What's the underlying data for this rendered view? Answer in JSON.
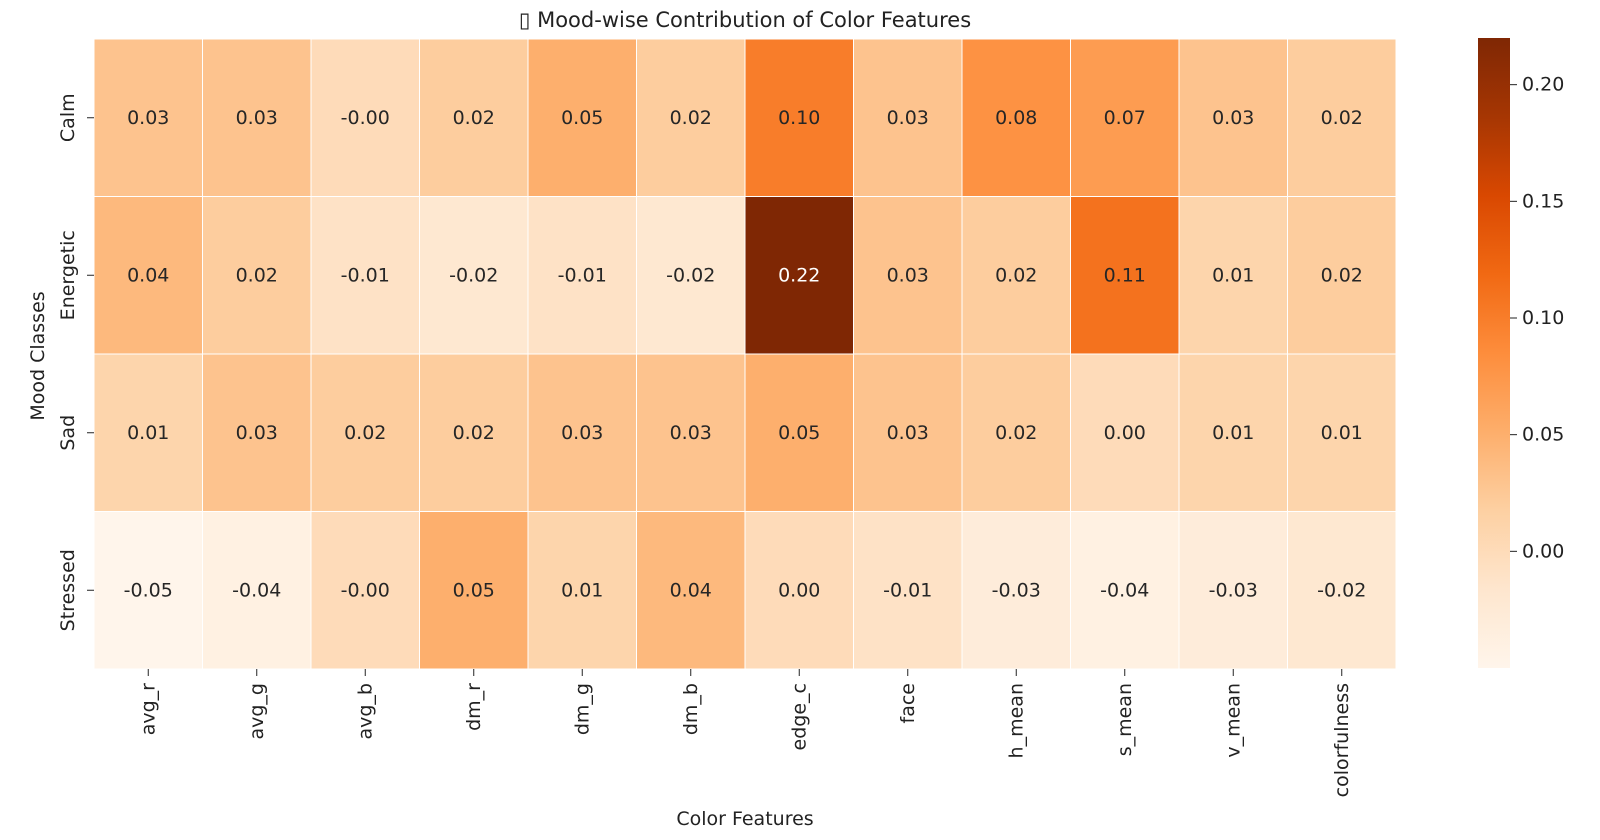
{
  "chart_data": {
    "type": "heatmap",
    "title": "▯ Mood-wise Contribution of Color Features",
    "xlabel": "Color Features",
    "ylabel": "Mood Classes",
    "x_categories": [
      "avg_r",
      "avg_g",
      "avg_b",
      "dm_r",
      "dm_g",
      "dm_b",
      "edge_c",
      "face",
      "h_mean",
      "s_mean",
      "v_mean",
      "colorfulness"
    ],
    "y_categories": [
      "Calm",
      "Energetic",
      "Sad",
      "Stressed"
    ],
    "values": [
      [
        0.03,
        0.03,
        -0.0,
        0.02,
        0.05,
        0.02,
        0.1,
        0.03,
        0.08,
        0.07,
        0.03,
        0.02
      ],
      [
        0.04,
        0.02,
        -0.01,
        -0.02,
        -0.01,
        -0.02,
        0.22,
        0.03,
        0.02,
        0.11,
        0.01,
        0.02
      ],
      [
        0.01,
        0.03,
        0.02,
        0.02,
        0.03,
        0.03,
        0.05,
        0.03,
        0.02,
        0.0,
        0.01,
        0.01
      ],
      [
        -0.05,
        -0.04,
        -0.0,
        0.05,
        0.01,
        0.04,
        0.0,
        -0.01,
        -0.03,
        -0.04,
        -0.03,
        -0.02
      ]
    ],
    "value_labels": [
      [
        "0.03",
        "0.03",
        "-0.00",
        "0.02",
        "0.05",
        "0.02",
        "0.10",
        "0.03",
        "0.08",
        "0.07",
        "0.03",
        "0.02"
      ],
      [
        "0.04",
        "0.02",
        "-0.01",
        "-0.02",
        "-0.01",
        "-0.02",
        "0.22",
        "0.03",
        "0.02",
        "0.11",
        "0.01",
        "0.02"
      ],
      [
        "0.01",
        "0.03",
        "0.02",
        "0.02",
        "0.03",
        "0.03",
        "0.05",
        "0.03",
        "0.02",
        "0.00",
        "0.01",
        "0.01"
      ],
      [
        "-0.05",
        "-0.04",
        "-0.00",
        "0.05",
        "0.01",
        "0.04",
        "0.00",
        "-0.01",
        "-0.03",
        "-0.04",
        "-0.03",
        "-0.02"
      ]
    ],
    "colorbar": {
      "min": -0.05,
      "max": 0.22,
      "ticks": [
        0.0,
        0.05,
        0.1,
        0.15,
        0.2
      ],
      "tick_labels": [
        "0.00",
        "0.05",
        "0.10",
        "0.15",
        "0.20"
      ]
    },
    "colormap": "Oranges",
    "colormap_stops": [
      "#fff5eb",
      "#fee6ce",
      "#fdd0a2",
      "#fdae6b",
      "#fd8d3c",
      "#f16913",
      "#d94801",
      "#a63603",
      "#7f2704"
    ],
    "legend": "right",
    "grid": false
  }
}
